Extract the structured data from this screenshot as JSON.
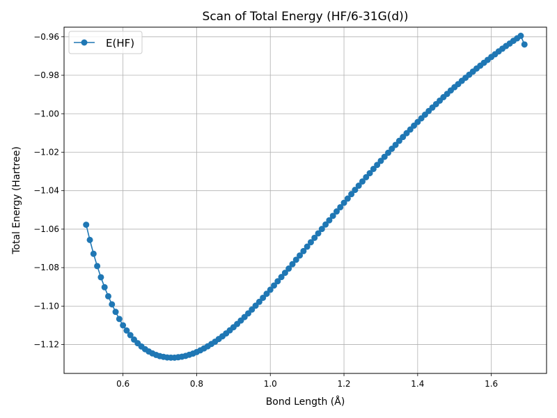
{
  "chart_data": {
    "type": "line",
    "title": "Scan of Total Energy (HF/6-31G(d))",
    "xlabel": "Bond Length (Å)",
    "ylabel": "Total Energy (Hartree)",
    "xlim": [
      0.44,
      1.75
    ],
    "ylim": [
      -1.135,
      -0.955
    ],
    "xticks": [
      0.6,
      0.8,
      1.0,
      1.2,
      1.4,
      1.6
    ],
    "xtick_labels": [
      "0.6",
      "0.8",
      "1.0",
      "1.2",
      "1.4",
      "1.6"
    ],
    "yticks": [
      -1.12,
      -1.1,
      -1.08,
      -1.06,
      -1.04,
      -1.02,
      -1.0,
      -0.98,
      -0.96
    ],
    "ytick_labels": [
      "−1.12",
      "−1.10",
      "−1.08",
      "−1.06",
      "−1.04",
      "−1.02",
      "−1.00",
      "−0.98",
      "−0.96"
    ],
    "grid": true,
    "legend_position": "top-left",
    "colors": {
      "series": "#1f77b4",
      "grid": "#b0b0b0",
      "axes": "#000000"
    },
    "series": [
      {
        "name": "E(HF)",
        "marker": "circle",
        "x": [
          0.5,
          0.51,
          0.52,
          0.53,
          0.54,
          0.55,
          0.56,
          0.57,
          0.58,
          0.59,
          0.6,
          0.61,
          0.62,
          0.63,
          0.64,
          0.65,
          0.66,
          0.67,
          0.68,
          0.69,
          0.7,
          0.71,
          0.72,
          0.73,
          0.74,
          0.75,
          0.76,
          0.77,
          0.78,
          0.79,
          0.8,
          0.81,
          0.82,
          0.83,
          0.84,
          0.85,
          0.86,
          0.87,
          0.88,
          0.89,
          0.9,
          0.91,
          0.92,
          0.93,
          0.94,
          0.95,
          0.96,
          0.97,
          0.98,
          0.99,
          1.0,
          1.01,
          1.02,
          1.03,
          1.04,
          1.05,
          1.06,
          1.07,
          1.08,
          1.09,
          1.1,
          1.11,
          1.12,
          1.13,
          1.14,
          1.15,
          1.16,
          1.17,
          1.18,
          1.19,
          1.2,
          1.21,
          1.22,
          1.23,
          1.24,
          1.25,
          1.26,
          1.27,
          1.28,
          1.29,
          1.3,
          1.31,
          1.32,
          1.33,
          1.34,
          1.35,
          1.36,
          1.37,
          1.38,
          1.39,
          1.4,
          1.41,
          1.42,
          1.43,
          1.44,
          1.45,
          1.46,
          1.47,
          1.48,
          1.49,
          1.5,
          1.51,
          1.52,
          1.53,
          1.54,
          1.55,
          1.56,
          1.57,
          1.58,
          1.59,
          1.6,
          1.61,
          1.62,
          1.63,
          1.64,
          1.65,
          1.66,
          1.67,
          1.68,
          1.69
        ],
        "y": [
          -1.0577,
          -1.0656,
          -1.0728,
          -1.0792,
          -1.085,
          -1.0902,
          -1.0949,
          -1.0991,
          -1.103,
          -1.1067,
          -1.11,
          -1.1127,
          -1.1151,
          -1.1174,
          -1.1193,
          -1.121,
          -1.1224,
          -1.1236,
          -1.1246,
          -1.1254,
          -1.126,
          -1.1264,
          -1.1267,
          -1.1268,
          -1.1268,
          -1.1266,
          -1.1263,
          -1.1259,
          -1.1253,
          -1.1247,
          -1.1239,
          -1.123,
          -1.122,
          -1.1209,
          -1.1197,
          -1.1185,
          -1.1171,
          -1.1157,
          -1.1142,
          -1.1126,
          -1.111,
          -1.1093,
          -1.1075,
          -1.1057,
          -1.1038,
          -1.1018,
          -1.0998,
          -1.0978,
          -1.0957,
          -1.0936,
          -1.0915,
          -1.0893,
          -1.0871,
          -1.0849,
          -1.0827,
          -1.0805,
          -1.0782,
          -1.0759,
          -1.0737,
          -1.0714,
          -1.0691,
          -1.0668,
          -1.0645,
          -1.0622,
          -1.0599,
          -1.0576,
          -1.0554,
          -1.0531,
          -1.0508,
          -1.0486,
          -1.0463,
          -1.0441,
          -1.0418,
          -1.0396,
          -1.0374,
          -1.0352,
          -1.033,
          -1.0309,
          -1.0287,
          -1.0266,
          -1.0245,
          -1.0224,
          -1.0203,
          -1.0182,
          -1.0162,
          -1.0141,
          -1.0121,
          -1.0101,
          -1.0082,
          -1.0062,
          -1.0043,
          -1.0024,
          -1.0005,
          -0.9986,
          -0.9968,
          -0.995,
          -0.9932,
          -0.9914,
          -0.9897,
          -0.9879,
          -0.9862,
          -0.9846,
          -0.9829,
          -0.9813,
          -0.9797,
          -0.9781,
          -0.9765,
          -0.975,
          -0.9735,
          -0.972,
          -0.9705,
          -0.9691,
          -0.9676,
          -0.9662,
          -0.9648,
          -0.9635,
          -0.9621,
          -0.9608,
          -0.9595,
          -0.964
        ]
      }
    ]
  }
}
